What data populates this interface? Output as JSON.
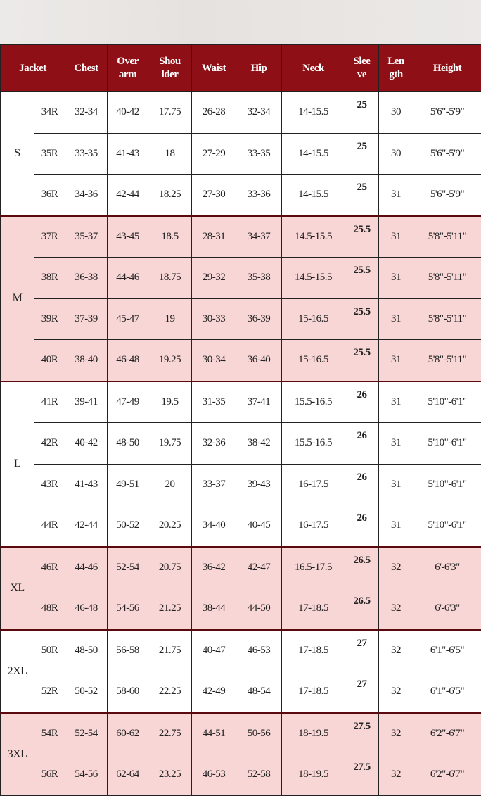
{
  "colors": {
    "header": "#8e1016",
    "pink": "#f8d6d6",
    "white": "#ffffff"
  },
  "headers": [
    "Jacket",
    "Chest",
    "Over arm",
    "Shou lder",
    "Waist",
    "Hip",
    "Neck",
    "Slee ve",
    "Len gth",
    "Height"
  ],
  "header_lines": [
    [
      "Jacket"
    ],
    [
      "Chest"
    ],
    [
      "Over",
      "arm"
    ],
    [
      "Shou",
      "lder"
    ],
    [
      "Waist"
    ],
    [
      "Hip"
    ],
    [
      "Neck"
    ],
    [
      "Slee",
      "ve"
    ],
    [
      "Len",
      "gth"
    ],
    [
      "Height"
    ]
  ],
  "groups": [
    {
      "size": "S",
      "shade": "white",
      "rows": [
        [
          "34R",
          "32-34",
          "40-42",
          "17.75",
          "26-28",
          "32-34",
          "14-15.5",
          "25",
          "30",
          "5'6\"-5'9\""
        ],
        [
          "35R",
          "33-35",
          "41-43",
          "18",
          "27-29",
          "33-35",
          "14-15.5",
          "25",
          "30",
          "5'6\"-5'9\""
        ],
        [
          "36R",
          "34-36",
          "42-44",
          "18.25",
          "27-30",
          "33-36",
          "14-15.5",
          "25",
          "31",
          "5'6\"-5'9\""
        ]
      ]
    },
    {
      "size": "M",
      "shade": "pink",
      "rows": [
        [
          "37R",
          "35-37",
          "43-45",
          "18.5",
          "28-31",
          "34-37",
          "14.5-15.5",
          "25.5",
          "31",
          "5'8\"-5'11\""
        ],
        [
          "38R",
          "36-38",
          "44-46",
          "18.75",
          "29-32",
          "35-38",
          "14.5-15.5",
          "25.5",
          "31",
          "5'8\"-5'11\""
        ],
        [
          "39R",
          "37-39",
          "45-47",
          "19",
          "30-33",
          "36-39",
          "15-16.5",
          "25.5",
          "31",
          "5'8\"-5'11\""
        ],
        [
          "40R",
          "38-40",
          "46-48",
          "19.25",
          "30-34",
          "36-40",
          "15-16.5",
          "25.5",
          "31",
          "5'8\"-5'11\""
        ]
      ]
    },
    {
      "size": "L",
      "shade": "white",
      "rows": [
        [
          "41R",
          "39-41",
          "47-49",
          "19.5",
          "31-35",
          "37-41",
          "15.5-16.5",
          "26",
          "31",
          "5'10\"-6'1\""
        ],
        [
          "42R",
          "40-42",
          "48-50",
          "19.75",
          "32-36",
          "38-42",
          "15.5-16.5",
          "26",
          "31",
          "5'10\"-6'1\""
        ],
        [
          "43R",
          "41-43",
          "49-51",
          "20",
          "33-37",
          "39-43",
          "16-17.5",
          "26",
          "31",
          "5'10\"-6'1\""
        ],
        [
          "44R",
          "42-44",
          "50-52",
          "20.25",
          "34-40",
          "40-45",
          "16-17.5",
          "26",
          "31",
          "5'10\"-6'1\""
        ]
      ]
    },
    {
      "size": "XL",
      "shade": "pink",
      "rows": [
        [
          "46R",
          "44-46",
          "52-54",
          "20.75",
          "36-42",
          "42-47",
          "16.5-17.5",
          "26.5",
          "32",
          "6'-6'3\""
        ],
        [
          "48R",
          "46-48",
          "54-56",
          "21.25",
          "38-44",
          "44-50",
          "17-18.5",
          "26.5",
          "32",
          "6'-6'3\""
        ]
      ]
    },
    {
      "size": "2XL",
      "shade": "white",
      "rows": [
        [
          "50R",
          "48-50",
          "56-58",
          "21.75",
          "40-47",
          "46-53",
          "17-18.5",
          "27",
          "32",
          "6'1\"-6'5\""
        ],
        [
          "52R",
          "50-52",
          "58-60",
          "22.25",
          "42-49",
          "48-54",
          "17-18.5",
          "27",
          "32",
          "6'1\"-6'5\""
        ]
      ]
    },
    {
      "size": "3XL",
      "shade": "pink",
      "rows": [
        [
          "54R",
          "52-54",
          "60-62",
          "22.75",
          "44-51",
          "50-56",
          "18-19.5",
          "27.5",
          "32",
          "6'2\"-6'7\""
        ],
        [
          "56R",
          "54-56",
          "62-64",
          "23.25",
          "46-53",
          "52-58",
          "18-19.5",
          "27.5",
          "32",
          "6'2\"-6'7\""
        ]
      ]
    }
  ]
}
